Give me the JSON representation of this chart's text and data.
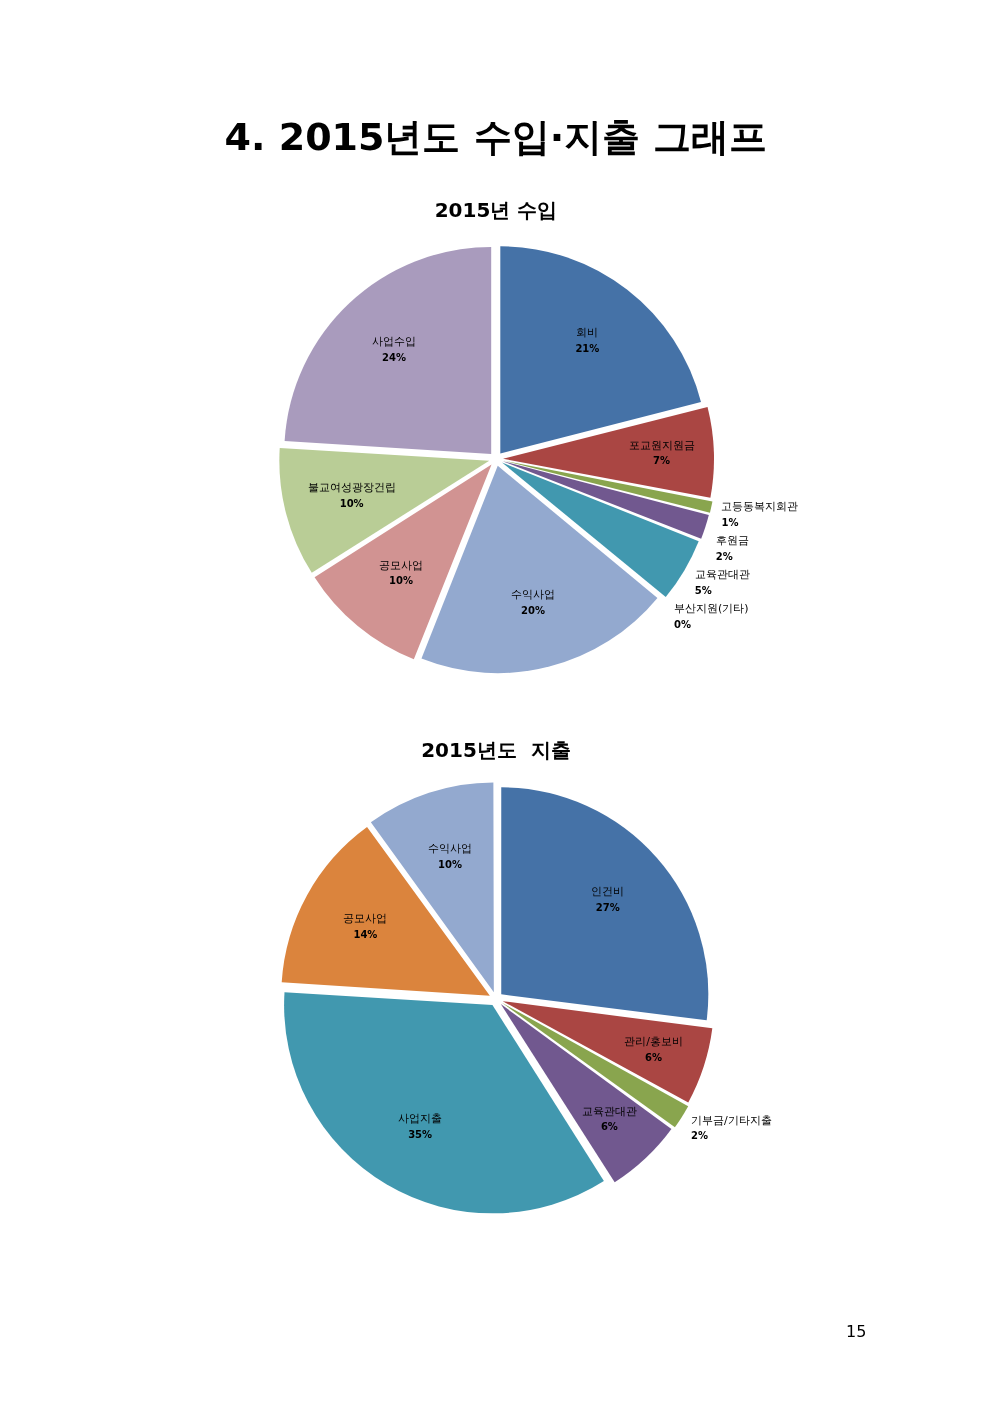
{
  "chart_data": [
    {
      "type": "pie",
      "title": "2015년 수입",
      "annotations": [
        "4. 2015년도 수입·지출 그래프"
      ],
      "legend": false,
      "categories": [
        "회비",
        "포교원지원금",
        "고등동복지회관",
        "후원금",
        "교육관대관",
        "부산지원(기타)",
        "수익사업",
        "공모사업",
        "불교여성광장건립",
        "사업수입"
      ],
      "values": [
        21,
        7,
        1,
        2,
        5,
        0,
        20,
        10,
        10,
        24
      ],
      "value_labels": [
        "21%",
        "7%",
        "1%",
        "2%",
        "5%",
        "0%",
        "20%",
        "10%",
        "10%",
        "24%"
      ],
      "colors": [
        "#4572a7",
        "#aa4643",
        "#89a54e",
        "#71588f",
        "#4198af",
        "#db843d",
        "#93a9cf",
        "#d19392",
        "#b9cd96",
        "#a99bbd"
      ]
    },
    {
      "type": "pie",
      "title": "2015년도  지출",
      "annotations": [
        "15"
      ],
      "legend": false,
      "categories": [
        "인건비",
        "관리/홍보비",
        "기부금/기타지출",
        "교육관대관",
        "사업지출",
        "공모사업",
        "수익사업"
      ],
      "values": [
        27,
        6,
        2,
        6,
        35,
        14,
        10
      ],
      "value_labels": [
        "27%",
        "6%",
        "2%",
        "6%",
        "35%",
        "14%",
        "10%"
      ],
      "colors": [
        "#4572a7",
        "#aa4643",
        "#89a54e",
        "#71588f",
        "#4198af",
        "#db843d",
        "#93a9cf"
      ]
    }
  ]
}
